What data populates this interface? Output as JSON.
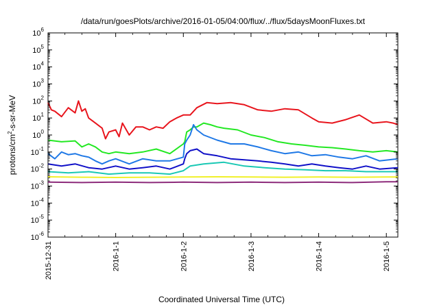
{
  "chart_data": {
    "type": "line",
    "title": "/data/run/goesPlots/archive/2016-01-05/04:00/flux/../flux/5daysMoonFluxes.txt",
    "xlabel": "Coordinated Universal Time (UTC)",
    "ylabel": {
      "prefix": "protons/cm",
      "sup": "2",
      "suffix": "-s-sr-MeV"
    },
    "y_scale": "log",
    "ylim_exponent": [
      -6,
      6
    ],
    "y_tick_labels": [
      {
        "base": "10",
        "exp": "-6"
      },
      {
        "base": "10",
        "exp": "-5"
      },
      {
        "base": "10",
        "exp": "-4"
      },
      {
        "base": "10",
        "exp": "-3"
      },
      {
        "base": "10",
        "exp": "-2"
      },
      {
        "base": "10",
        "exp": "-1"
      },
      {
        "base": "10",
        "exp": "0"
      },
      {
        "base": "10",
        "exp": "1"
      },
      {
        "base": "10",
        "exp": "2"
      },
      {
        "base": "10",
        "exp": "3"
      },
      {
        "base": "10",
        "exp": "4"
      },
      {
        "base": "10",
        "exp": "5"
      },
      {
        "base": "10",
        "exp": "6"
      }
    ],
    "x_range_days": [
      0,
      5.17
    ],
    "x_ticks": [
      "2015-12-31",
      "2016-1-1",
      "2016-1-2",
      "2016-1-3",
      "2016-1-4",
      "2016-1-5"
    ],
    "grid": false,
    "legend": "none",
    "series": [
      {
        "color": "#e8141c",
        "x": [
          0.0,
          0.05,
          0.1,
          0.2,
          0.3,
          0.4,
          0.45,
          0.5,
          0.55,
          0.6,
          0.7,
          0.8,
          0.85,
          0.9,
          1.0,
          1.05,
          1.1,
          1.2,
          1.3,
          1.4,
          1.5,
          1.6,
          1.7,
          1.8,
          1.9,
          2.0,
          2.1,
          2.2,
          2.35,
          2.5,
          2.7,
          2.9,
          3.1,
          3.3,
          3.5,
          3.7,
          3.9,
          4.0,
          4.2,
          4.4,
          4.6,
          4.8,
          5.0,
          5.1,
          5.17
        ],
        "y": [
          80,
          30,
          25,
          12,
          40,
          20,
          100,
          25,
          35,
          10,
          5,
          2.5,
          0.6,
          1.5,
          2,
          0.8,
          5,
          1,
          3,
          3,
          2,
          3,
          2.5,
          6,
          10,
          15,
          15,
          40,
          80,
          70,
          80,
          60,
          30,
          25,
          35,
          30,
          10,
          6,
          5,
          8,
          15,
          5,
          6,
          5,
          4
        ]
      },
      {
        "color": "#22e822",
        "x": [
          0.0,
          0.2,
          0.4,
          0.5,
          0.6,
          0.7,
          0.8,
          0.9,
          1.0,
          1.2,
          1.4,
          1.6,
          1.8,
          2.0,
          2.02,
          2.05,
          2.1,
          2.15,
          2.2,
          2.3,
          2.4,
          2.5,
          2.6,
          2.8,
          3.0,
          3.2,
          3.4,
          3.6,
          3.8,
          4.0,
          4.2,
          4.4,
          4.6,
          4.8,
          5.0,
          5.17
        ],
        "y": [
          0.5,
          0.4,
          0.45,
          0.2,
          0.3,
          0.2,
          0.1,
          0.08,
          0.1,
          0.08,
          0.1,
          0.15,
          0.08,
          0.3,
          0.4,
          1.5,
          2,
          3,
          3,
          5,
          4,
          3,
          2.5,
          2,
          1,
          0.7,
          0.4,
          0.3,
          0.25,
          0.2,
          0.18,
          0.15,
          0.12,
          0.1,
          0.12,
          0.1
        ]
      },
      {
        "color": "#1e78e6",
        "x": [
          0.0,
          0.1,
          0.2,
          0.3,
          0.4,
          0.5,
          0.6,
          0.7,
          0.8,
          0.9,
          1.0,
          1.2,
          1.4,
          1.6,
          1.8,
          2.0,
          2.02,
          2.05,
          2.1,
          2.15,
          2.2,
          2.3,
          2.5,
          2.7,
          2.9,
          3.1,
          3.3,
          3.5,
          3.7,
          3.9,
          4.1,
          4.3,
          4.5,
          4.7,
          4.9,
          5.17
        ],
        "y": [
          0.08,
          0.04,
          0.1,
          0.07,
          0.08,
          0.06,
          0.05,
          0.03,
          0.02,
          0.03,
          0.04,
          0.02,
          0.04,
          0.03,
          0.03,
          0.05,
          0.3,
          0.5,
          1,
          4,
          2,
          1,
          0.5,
          0.3,
          0.3,
          0.2,
          0.12,
          0.08,
          0.1,
          0.06,
          0.07,
          0.05,
          0.04,
          0.06,
          0.03,
          0.04
        ]
      },
      {
        "color": "#1010c8",
        "x": [
          0.0,
          0.2,
          0.4,
          0.6,
          0.8,
          1.0,
          1.2,
          1.4,
          1.6,
          1.8,
          2.0,
          2.02,
          2.05,
          2.1,
          2.2,
          2.3,
          2.5,
          2.7,
          2.9,
          3.1,
          3.3,
          3.5,
          3.7,
          3.9,
          4.1,
          4.3,
          4.5,
          4.7,
          4.9,
          5.17
        ],
        "y": [
          0.02,
          0.015,
          0.02,
          0.012,
          0.01,
          0.015,
          0.01,
          0.012,
          0.015,
          0.01,
          0.02,
          0.04,
          0.08,
          0.12,
          0.15,
          0.08,
          0.06,
          0.04,
          0.035,
          0.03,
          0.025,
          0.02,
          0.015,
          0.02,
          0.015,
          0.012,
          0.01,
          0.015,
          0.01,
          0.012
        ]
      },
      {
        "color": "#18c8b4",
        "x": [
          0.0,
          0.3,
          0.6,
          0.9,
          1.2,
          1.5,
          1.8,
          2.0,
          2.1,
          2.3,
          2.6,
          2.9,
          3.2,
          3.5,
          3.8,
          4.1,
          4.4,
          4.7,
          5.0,
          5.17
        ],
        "y": [
          0.007,
          0.006,
          0.007,
          0.005,
          0.006,
          0.006,
          0.005,
          0.008,
          0.015,
          0.02,
          0.025,
          0.015,
          0.012,
          0.01,
          0.009,
          0.008,
          0.008,
          0.007,
          0.007,
          0.007
        ]
      },
      {
        "color": "#f0f028",
        "x": [
          0.0,
          0.5,
          1.0,
          1.5,
          2.0,
          2.5,
          3.0,
          3.5,
          4.0,
          4.5,
          5.0,
          5.17
        ],
        "y": [
          0.0035,
          0.0033,
          0.0032,
          0.0033,
          0.0034,
          0.0035,
          0.0034,
          0.0033,
          0.0034,
          0.0033,
          0.0034,
          0.0034
        ]
      },
      {
        "color": "#8c2a7a",
        "x": [
          0.0,
          0.5,
          1.0,
          1.5,
          2.0,
          2.5,
          3.0,
          3.5,
          4.0,
          4.5,
          5.0,
          5.17
        ],
        "y": [
          0.0017,
          0.0016,
          0.0017,
          0.0016,
          0.0017,
          0.0016,
          0.0017,
          0.0016,
          0.0017,
          0.0016,
          0.0018,
          0.0018
        ]
      }
    ]
  }
}
